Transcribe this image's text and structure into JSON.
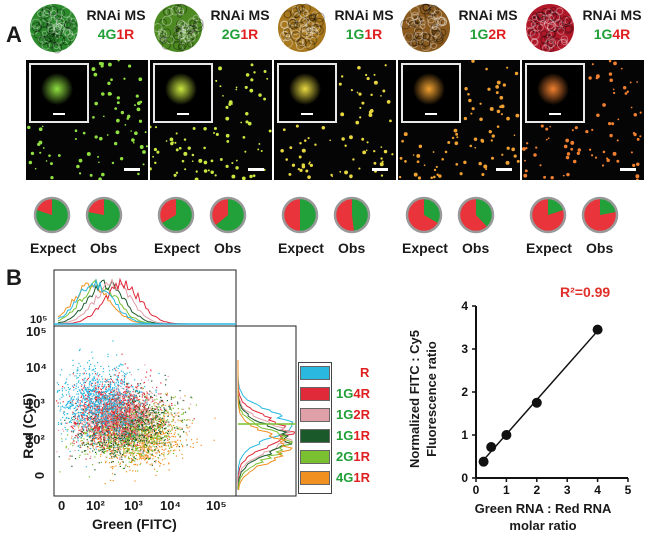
{
  "panel_a": {
    "letter": "A",
    "title_text": "RNAi MS",
    "columns": [
      {
        "g": "4G",
        "r": "1R",
        "sphere_color": "#2c8a2c",
        "dot_color": "#8fe040",
        "expect_red": 0.2,
        "obs_red": 0.22
      },
      {
        "g": "2G",
        "r": "1R",
        "sphere_color": "#4d8a22",
        "dot_color": "#c8e840",
        "expect_red": 0.333,
        "obs_red": 0.36
      },
      {
        "g": "1G",
        "r": "1R",
        "sphere_color": "#a8781e",
        "dot_color": "#e8d840",
        "expect_red": 0.5,
        "obs_red": 0.52
      },
      {
        "g": "1G",
        "r": "2R",
        "sphere_color": "#8a5a1e",
        "dot_color": "#f0a030",
        "expect_red": 0.667,
        "obs_red": 0.62
      },
      {
        "g": "1G",
        "r": "4R",
        "sphere_color": "#b0182a",
        "dot_color": "#f08030",
        "expect_red": 0.8,
        "obs_red": 0.78
      }
    ],
    "expect_label": "Expect",
    "obs_label": "Obs"
  },
  "panel_b": {
    "letter": "B",
    "flow": {
      "ylabel": "Red (Cy5)",
      "xlabel": "Green (FITC)",
      "y_ticks": [
        "10⁵",
        "10⁴",
        "10³",
        "10²",
        "0"
      ],
      "x_ticks": [
        "0",
        "10²",
        "10³",
        "10⁴",
        "10⁵"
      ],
      "top_tick": "10⁵"
    },
    "legend": [
      {
        "label_g": "",
        "label_r": "R",
        "color": "#2ab8e0"
      },
      {
        "label_g": "1G",
        "label_r": "4R",
        "color": "#e02a3a"
      },
      {
        "label_g": "1G",
        "label_r": "2R",
        "color": "#e0a0a8"
      },
      {
        "label_g": "1G",
        "label_r": "1R",
        "color": "#1a5a2a"
      },
      {
        "label_g": "2G",
        "label_r": "1R",
        "color": "#7ac030"
      },
      {
        "label_g": "4G",
        "label_r": "1R",
        "color": "#f09020"
      }
    ]
  },
  "chart_data": {
    "type": "scatter",
    "x": [
      0.25,
      0.5,
      1,
      2,
      4
    ],
    "y": [
      0.38,
      0.72,
      1.0,
      1.75,
      3.45
    ],
    "xlabel_line1": "Green RNA : Red RNA",
    "xlabel_line2": "molar ratio",
    "ylabel_line1": "Normalized FITC : Cy5",
    "ylabel_line2": "Fluorescence ratio",
    "annotation": "R²=0.99",
    "xlim": [
      0,
      5
    ],
    "ylim": [
      0,
      4
    ],
    "x_ticks": [
      0,
      1,
      2,
      3,
      4,
      5
    ],
    "y_ticks": [
      0,
      1,
      2,
      3,
      4
    ],
    "fit_line": true,
    "grid": false
  },
  "colors": {
    "green": "#21a038",
    "red": "#e02020",
    "annotation": "#e0302a"
  }
}
